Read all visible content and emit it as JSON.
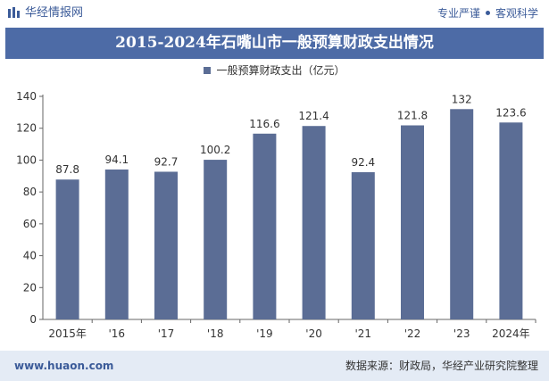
{
  "header": {
    "brand": "华经情报网",
    "slogan_left": "专业严谨",
    "slogan_right": "客观科学"
  },
  "title": "2015-2024年石嘴山市一般预算财政支出情况",
  "colors": {
    "bar": "#5b6d95",
    "title_bg": "#4d6ba6",
    "footer_bg": "#e4ebf5",
    "brand": "#3b5b99"
  },
  "chart_data": {
    "type": "bar",
    "categories": [
      "2015年",
      "'16",
      "'17",
      "'18",
      "'19",
      "'20",
      "'21",
      "'22",
      "'23",
      "2024年"
    ],
    "series": [
      {
        "name": "一般预算财政支出（亿元）",
        "values": [
          87.8,
          94.1,
          92.7,
          100.2,
          116.6,
          121.4,
          92.4,
          121.8,
          132,
          123.6
        ]
      }
    ],
    "data_labels": [
      "87.8",
      "94.1",
      "92.7",
      "100.2",
      "116.6",
      "121.4",
      "92.4",
      "121.8",
      "132",
      "123.6"
    ],
    "yticks": [
      "0",
      "20",
      "40",
      "60",
      "80",
      "100",
      "120",
      "140"
    ],
    "ylim": [
      0,
      140
    ],
    "legend_position": "top-center",
    "grid": false
  },
  "footer": {
    "website": "www.huaon.com",
    "source": "数据来源：财政局，华经产业研究院整理"
  }
}
